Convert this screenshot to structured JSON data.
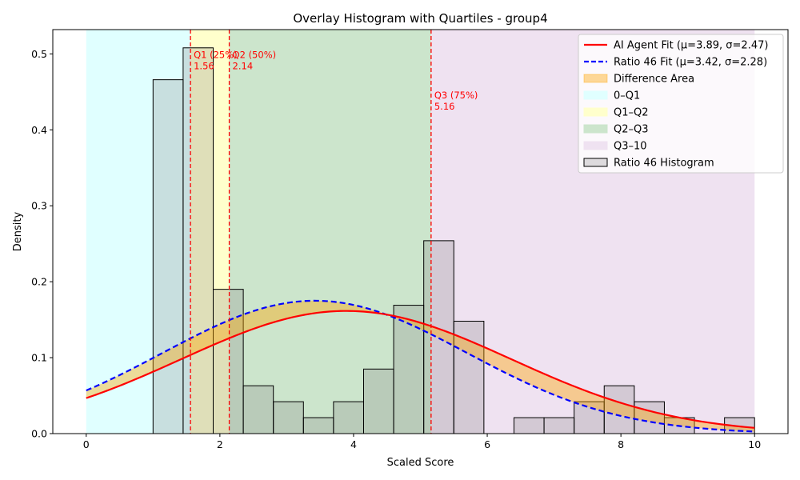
{
  "chart_data": {
    "type": "bar",
    "title": "Overlay Histogram with Quartiles - group4",
    "xlabel": "Scaled Score",
    "ylabel": "Density",
    "xlim": [
      -0.5,
      10.5
    ],
    "ylim": [
      0,
      0.532
    ],
    "xticks": [
      0,
      2,
      4,
      6,
      8,
      10
    ],
    "yticks": [
      0.0,
      0.1,
      0.2,
      0.3,
      0.4,
      0.5
    ],
    "xtick_labels": [
      "0",
      "2",
      "4",
      "6",
      "8",
      "10"
    ],
    "ytick_labels": [
      "0.0",
      "0.1",
      "0.2",
      "0.3",
      "0.4",
      "0.5"
    ],
    "histogram": {
      "name": "Ratio 46 Histogram",
      "bin_start": 1.0,
      "bin_width": 0.45,
      "values": [
        0.466,
        0.508,
        0.19,
        0.063,
        0.042,
        0.021,
        0.042,
        0.085,
        0.169,
        0.254,
        0.148,
        0.0,
        0.021,
        0.021,
        0.042,
        0.063,
        0.042,
        0.021,
        0.0,
        0.021
      ]
    },
    "fits": [
      {
        "name": "AI Agent Fit (μ=3.89, σ=2.47)",
        "mu": 3.89,
        "sigma": 2.47,
        "color": "#ff0000",
        "style": "solid"
      },
      {
        "name": "Ratio 46 Fit (μ=3.42, σ=2.28)",
        "mu": 3.42,
        "sigma": 2.28,
        "color": "#0000ff",
        "style": "dashed"
      }
    ],
    "difference_area": {
      "name": "Difference Area",
      "color": "#ffa500"
    },
    "regions": [
      {
        "name": "0–Q1",
        "from": 0,
        "to": 1.56,
        "color": "#e0ffff"
      },
      {
        "name": "Q1–Q2",
        "from": 1.56,
        "to": 2.14,
        "color": "#ffffcc"
      },
      {
        "name": "Q2–Q3",
        "from": 2.14,
        "to": 5.16,
        "color": "#cce5cc"
      },
      {
        "name": "Q3–10",
        "from": 5.16,
        "to": 10,
        "color": "#efe2f1"
      }
    ],
    "quartiles": [
      {
        "label": "Q1 (25%)",
        "value_label": "1.56",
        "x": 1.56
      },
      {
        "label": "Q2 (50%)",
        "value_label": "2.14",
        "x": 2.14
      },
      {
        "label": "Q3 (75%)",
        "value_label": "5.16",
        "x": 5.16
      }
    ],
    "legend_position": "top-right"
  }
}
